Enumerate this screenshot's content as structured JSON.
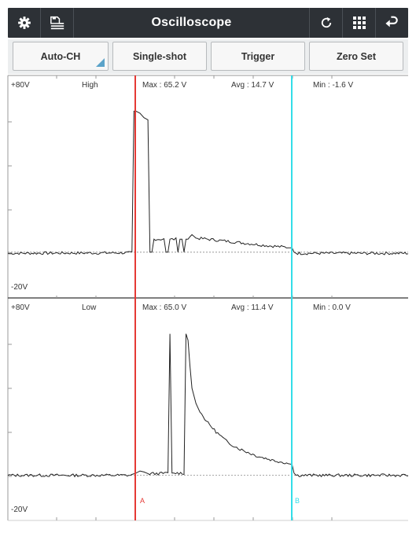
{
  "header": {
    "title": "Oscilloscope",
    "icons": [
      "gear-icon",
      "save-list-icon",
      "refresh-icon",
      "grid-icon",
      "return-icon"
    ]
  },
  "toolbar": {
    "auto_ch": "Auto-CH",
    "single_shot": "Single-shot",
    "trigger": "Trigger",
    "zero_set": "Zero Set"
  },
  "channel_high": {
    "top_label": "+80V",
    "bottom_label": "-20V",
    "name": "High",
    "max": "Max : 65.2 V",
    "avg": "Avg : 14.7 V",
    "min": "Min : -1.6 V"
  },
  "channel_low": {
    "top_label": "+80V",
    "bottom_label": "-20V",
    "name": "Low",
    "max": "Max : 65.0 V",
    "avg": "Avg : 11.4 V",
    "min": "Min : 0.0 V"
  },
  "cursors": {
    "a_label": "A",
    "b_label": "B",
    "a_color": "#e53935",
    "b_color": "#33dde8"
  },
  "chart_data": [
    {
      "type": "line",
      "name": "High",
      "ylim": [
        -20,
        80
      ],
      "xlim": [
        0,
        100
      ],
      "grid": false,
      "x": [
        0,
        31,
        31.5,
        33,
        34,
        35,
        35.5,
        36,
        36.5,
        39,
        39.5,
        40,
        40.5,
        42,
        42.5,
        43,
        43.5,
        44,
        44.5,
        46,
        47,
        50,
        55,
        60,
        65,
        70,
        71,
        71.5,
        72,
        100
      ],
      "values": [
        -0.5,
        -0.3,
        65,
        64,
        62,
        61,
        0,
        0,
        6,
        6,
        0,
        0,
        6,
        6,
        0,
        6,
        6,
        0,
        6,
        8,
        6.5,
        6,
        5,
        4,
        3,
        2.2,
        2,
        0,
        -0.5,
        -0.5
      ]
    },
    {
      "type": "line",
      "name": "Low",
      "ylim": [
        -20,
        80
      ],
      "xlim": [
        0,
        100
      ],
      "grid": false,
      "x": [
        0,
        31,
        32,
        33,
        34,
        35,
        38,
        40,
        40.5,
        41,
        41.5,
        44,
        44.5,
        45,
        45.5,
        46,
        47,
        48,
        50,
        52,
        55,
        58,
        62,
        66,
        70,
        71,
        71.5,
        72,
        100
      ],
      "values": [
        0,
        0,
        1,
        2,
        1.5,
        0.8,
        0.8,
        1,
        65,
        1,
        1,
        1,
        65,
        62,
        50,
        40,
        33,
        29,
        24,
        20,
        15,
        12,
        9,
        7,
        5.5,
        5,
        1,
        0,
        0
      ]
    }
  ]
}
